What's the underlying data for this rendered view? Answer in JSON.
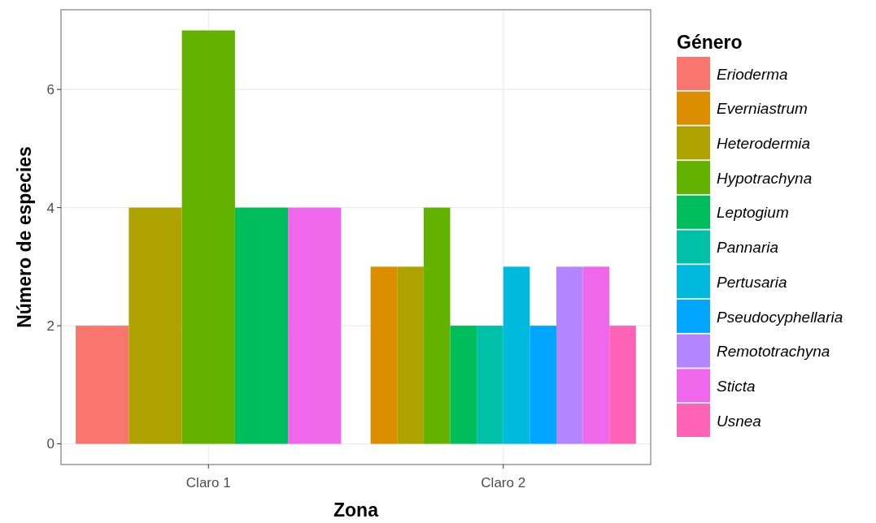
{
  "chart_data": {
    "type": "bar",
    "xlabel": "Zona",
    "ylabel": "Número de especies",
    "legend_title": "Género",
    "categories": [
      "Claro 1",
      "Claro 2"
    ],
    "ylim": [
      -0.35,
      7.35
    ],
    "yticks": [
      0,
      2,
      4,
      6
    ],
    "grid": true,
    "legend": "right",
    "series": [
      {
        "name": "Erioderma",
        "color": "#f8766d",
        "values": [
          2,
          null
        ]
      },
      {
        "name": "Everniastrum",
        "color": "#db8e00",
        "values": [
          null,
          3
        ]
      },
      {
        "name": "Heterodermia",
        "color": "#aea200",
        "values": [
          4,
          3
        ]
      },
      {
        "name": "Hypotrachyna",
        "color": "#64b200",
        "values": [
          7,
          4
        ]
      },
      {
        "name": "Leptogium",
        "color": "#00bd5c",
        "values": [
          4,
          2
        ]
      },
      {
        "name": "Pannaria",
        "color": "#00c1a7",
        "values": [
          null,
          2
        ]
      },
      {
        "name": "Pertusaria",
        "color": "#00bade",
        "values": [
          null,
          3
        ]
      },
      {
        "name": "Pseudocyphellaria",
        "color": "#00a6ff",
        "values": [
          null,
          2
        ]
      },
      {
        "name": "Remototrachyna",
        "color": "#b385ff",
        "values": [
          null,
          3
        ]
      },
      {
        "name": "Sticta",
        "color": "#ef67eb",
        "values": [
          4,
          3
        ]
      },
      {
        "name": "Usnea",
        "color": "#ff63b6",
        "values": [
          null,
          2
        ]
      }
    ]
  }
}
